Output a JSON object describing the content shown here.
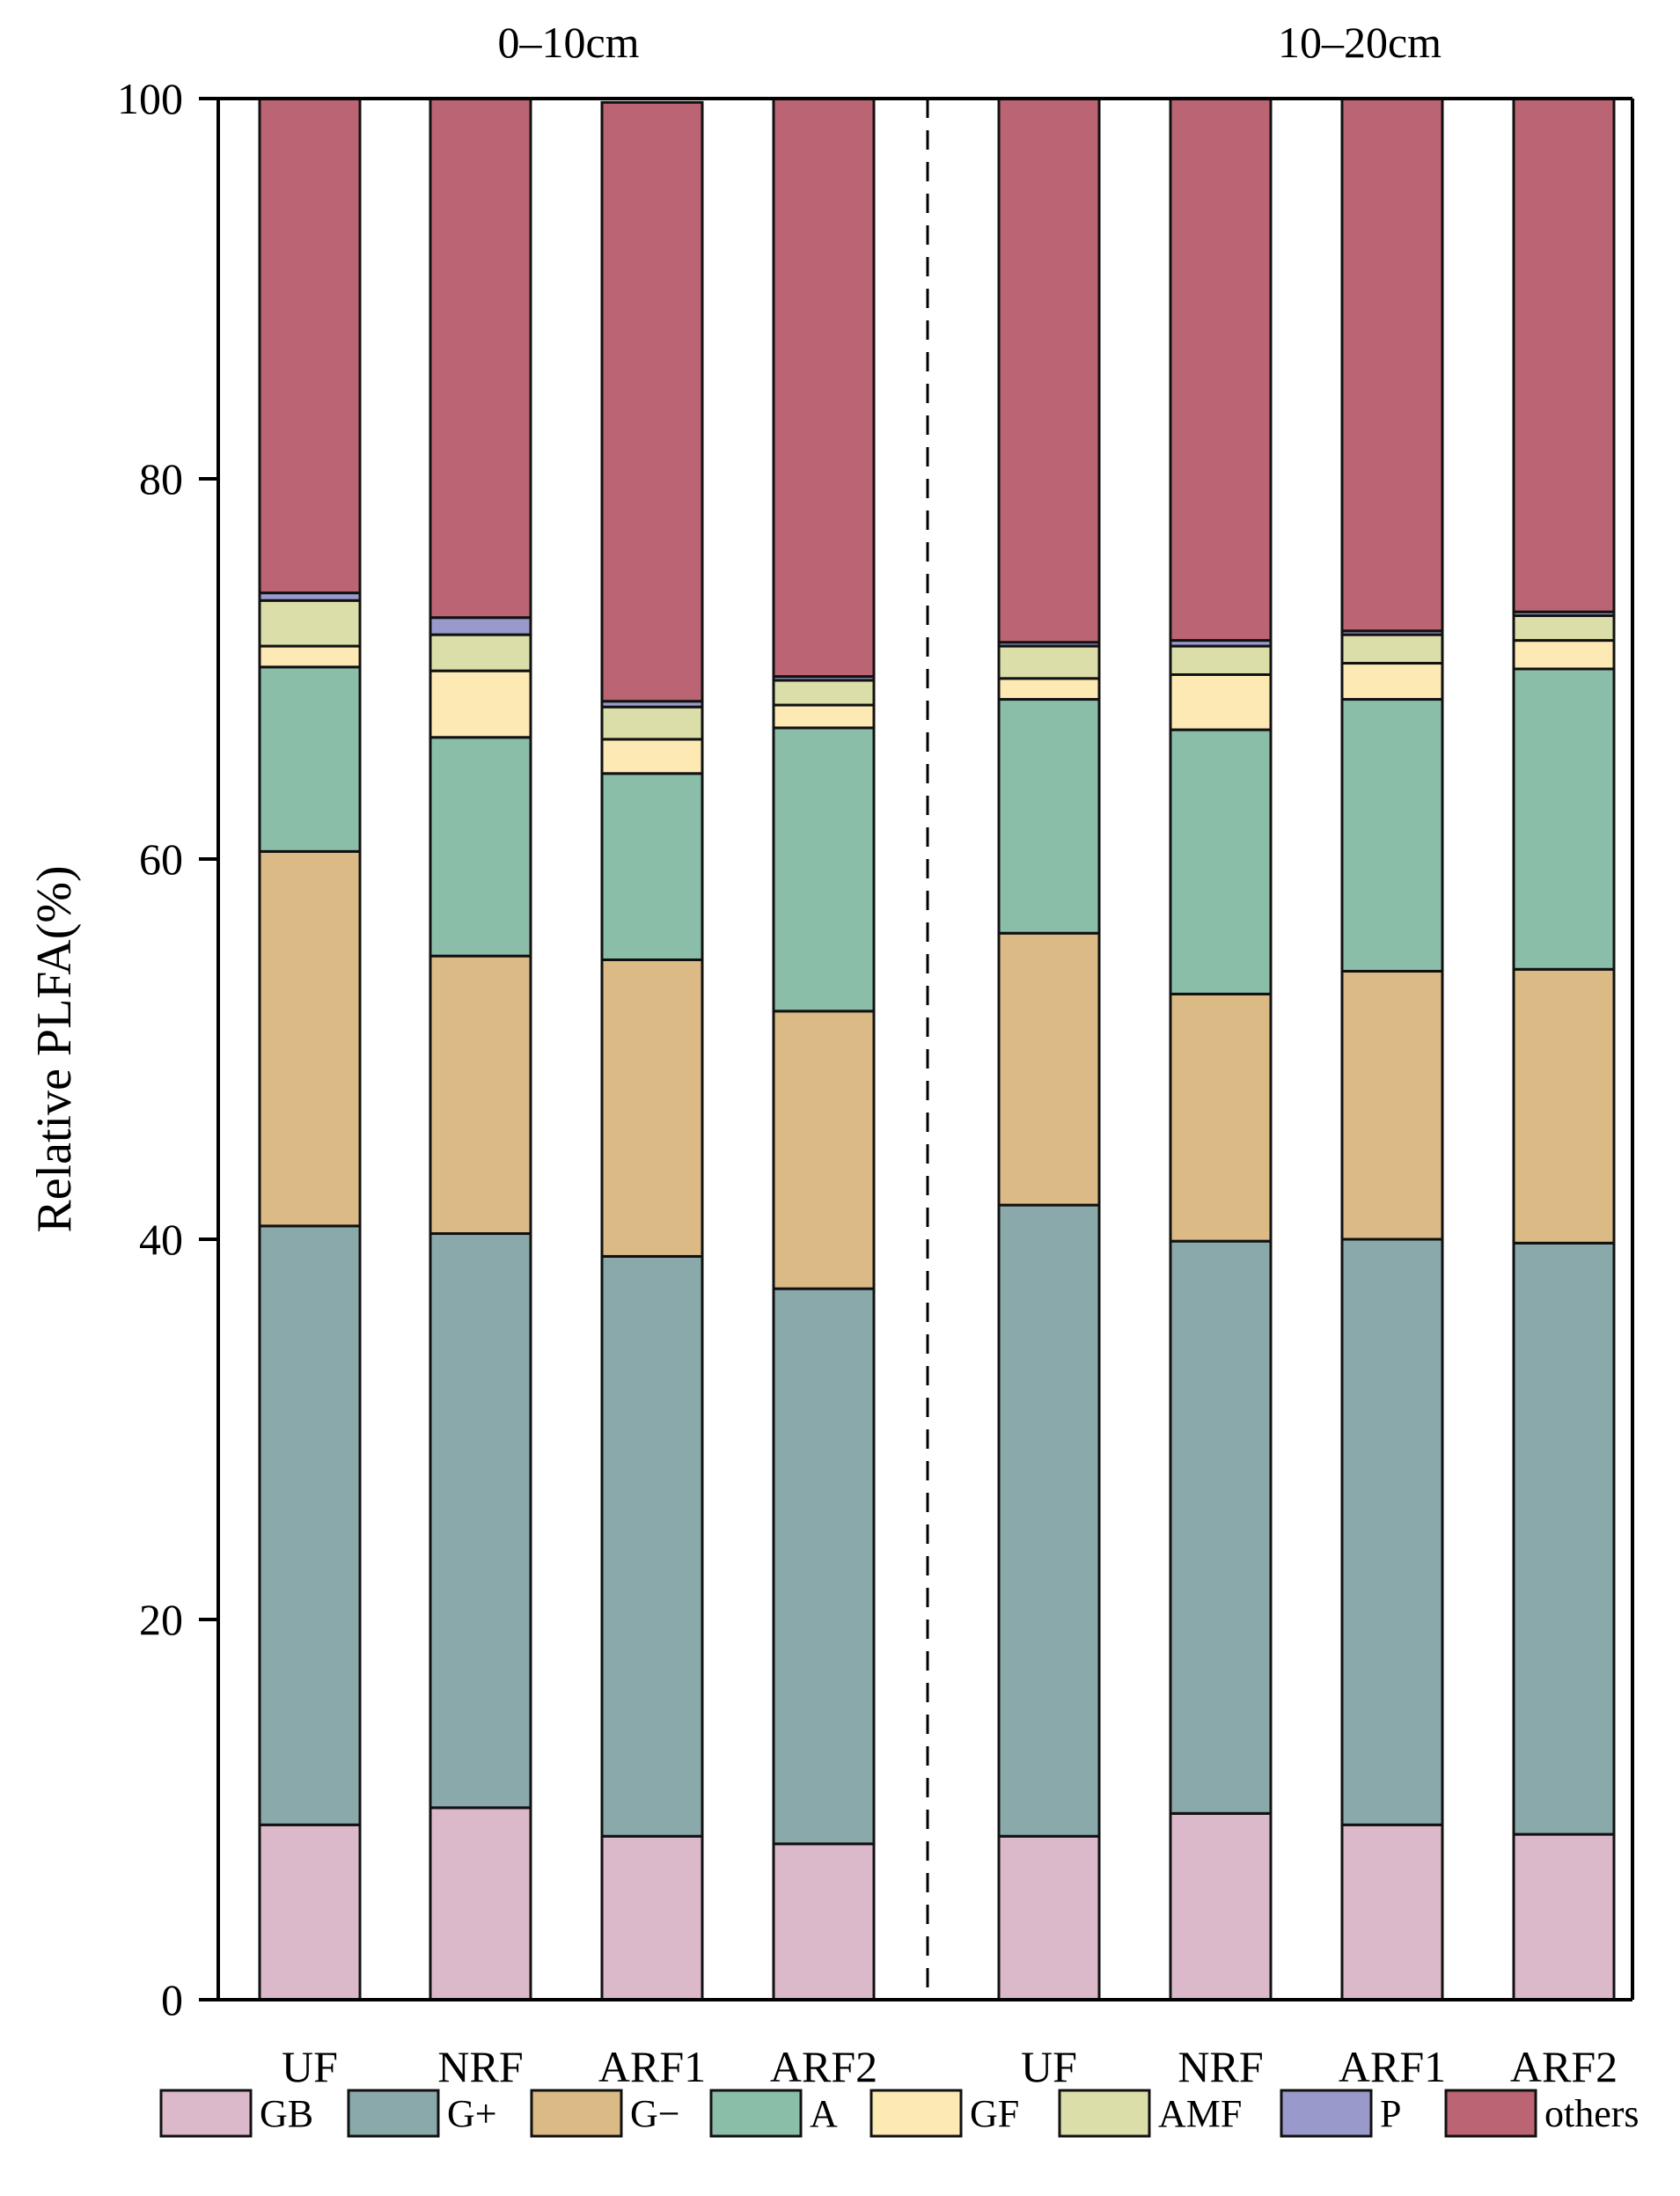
{
  "chart_data": {
    "type": "bar",
    "stacked": true,
    "ylabel": "Relative PLFA(%)",
    "ylim": [
      0,
      100
    ],
    "yticks": [
      0,
      20,
      40,
      60,
      80,
      100
    ],
    "groups": [
      {
        "label": "0–10cm",
        "categories": [
          "UF",
          "NRF",
          "ARF1",
          "ARF2"
        ]
      },
      {
        "label": "10–20cm",
        "categories": [
          "UF",
          "NRF",
          "ARF1",
          "ARF2"
        ]
      }
    ],
    "series": [
      {
        "name": "GB",
        "color": "#dcb8cb",
        "values": [
          9.2,
          10.1,
          8.6,
          8.2,
          8.6,
          9.8,
          9.2,
          8.7
        ]
      },
      {
        "name": "G+",
        "color": "#8aa9aa",
        "values": [
          31.5,
          30.2,
          30.5,
          29.2,
          33.2,
          30.1,
          30.8,
          31.1
        ]
      },
      {
        "name": "G−",
        "color": "#dcba86",
        "values": [
          19.7,
          14.6,
          15.6,
          14.6,
          14.3,
          13.0,
          14.1,
          14.4
        ]
      },
      {
        "name": "A",
        "color": "#8bbea9",
        "values": [
          9.7,
          11.5,
          9.8,
          14.9,
          12.3,
          13.9,
          14.3,
          15.8
        ]
      },
      {
        "name": "GF",
        "color": "#fde9b3",
        "values": [
          1.1,
          3.5,
          1.8,
          1.2,
          1.1,
          2.9,
          1.9,
          1.5
        ]
      },
      {
        "name": "AMF",
        "color": "#dcdea9",
        "values": [
          2.4,
          1.9,
          1.7,
          1.3,
          1.7,
          1.5,
          1.5,
          1.3
        ]
      },
      {
        "name": "P",
        "color": "#9999cc",
        "values": [
          0.4,
          0.9,
          0.3,
          0.2,
          0.2,
          0.3,
          0.2,
          0.2
        ]
      },
      {
        "name": "others",
        "color": "#bb6473",
        "values": [
          26.0,
          27.3,
          31.5,
          30.4,
          28.6,
          28.5,
          28.0,
          27.0
        ]
      }
    ]
  }
}
